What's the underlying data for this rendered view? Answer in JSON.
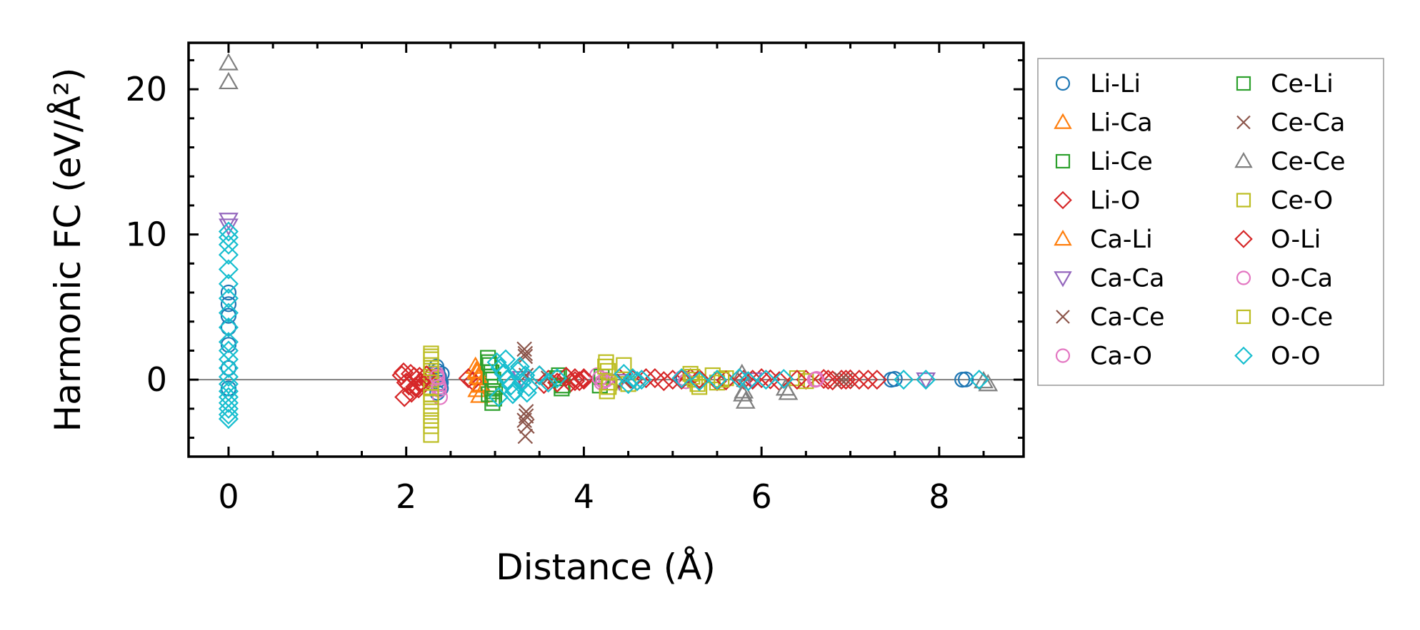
{
  "chart_data": {
    "type": "scatter",
    "xlabel": "Distance (Å)",
    "ylabel": "Harmonic FC (eV/Å²)",
    "xlim": [
      -0.45,
      8.95
    ],
    "ylim": [
      -5.3,
      23.2
    ],
    "xticks": [
      0,
      2,
      4,
      6,
      8
    ],
    "yticks": [
      0,
      10,
      20
    ],
    "x_minor_step": 0.5,
    "y_minor_step": 2,
    "zero_line": true,
    "legend_position": "outside-right",
    "legend_columns": 2,
    "series": [
      {
        "name": "Li-Li",
        "marker": "circle",
        "color": "#1f77b4",
        "x": [
          0,
          0,
          0,
          0,
          0,
          0,
          0,
          2.34,
          2.35,
          2.36,
          2.37,
          2.38,
          2.39,
          2.4,
          2.35,
          2.37,
          2.39,
          5.12,
          5.15,
          7.46,
          7.5,
          8.26,
          8.3
        ],
        "y": [
          6.0,
          5.2,
          4.4,
          3.6,
          2.4,
          0.8,
          -0.6,
          0.9,
          0.6,
          0.3,
          0.0,
          -0.3,
          -0.6,
          0.4,
          -0.9,
          0.2,
          -0.2,
          0.1,
          -0.1,
          0.0,
          0.05,
          0.0,
          0.02
        ]
      },
      {
        "name": "Li-Ca",
        "marker": "triangle-up",
        "color": "#ff7f0e",
        "x": [
          2.78,
          2.8,
          2.82,
          2.84,
          2.8,
          2.83
        ],
        "y": [
          0.9,
          0.5,
          0.1,
          -0.3,
          -0.7,
          -1.1
        ]
      },
      {
        "name": "Li-Ce",
        "marker": "square",
        "color": "#2ca02c",
        "x": [
          2.92,
          2.94,
          2.96,
          2.98,
          3.0,
          2.93,
          2.97,
          3.72,
          3.75,
          4.18
        ],
        "y": [
          1.5,
          1.0,
          0.5,
          0.0,
          -0.5,
          -1.0,
          -1.6,
          0.3,
          -0.6,
          -0.4
        ]
      },
      {
        "name": "Li-O",
        "marker": "diamond",
        "color": "#d62728",
        "x": [
          1.95,
          2.0,
          2.05,
          2.1,
          2.15,
          2.2,
          2.25,
          1.98,
          2.06,
          2.14,
          2.7,
          2.75,
          3.5,
          3.55,
          3.6,
          3.8,
          3.85,
          3.9,
          3.95,
          4.0,
          4.4,
          4.6,
          4.8,
          5.0,
          5.2,
          5.5,
          5.8,
          6.0,
          6.2,
          6.5,
          6.7,
          6.8,
          6.9,
          7.0,
          7.1,
          7.3
        ],
        "y": [
          0.3,
          -0.2,
          0.4,
          -0.5,
          0.2,
          -0.3,
          0.1,
          -1.2,
          -0.9,
          -0.6,
          0.1,
          -0.1,
          0.3,
          -0.3,
          0.0,
          0.2,
          -0.2,
          0.1,
          -0.1,
          0.0,
          0.1,
          -0.1,
          0.1,
          0.0,
          0.1,
          -0.1,
          0.0,
          0.1,
          -0.1,
          0.0,
          0.05,
          -0.05,
          0.0,
          0.02,
          0.0,
          0.0
        ]
      },
      {
        "name": "Ca-Li",
        "marker": "triangle-up",
        "color": "#ff7f0e",
        "x": [
          2.79,
          2.81,
          2.83
        ],
        "y": [
          0.6,
          0.2,
          -0.4
        ]
      },
      {
        "name": "Ca-Ca",
        "marker": "triangle-down",
        "color": "#9467bd",
        "x": [
          0,
          0,
          3.3,
          4.4,
          5.9,
          7.85
        ],
        "y": [
          11.0,
          10.6,
          0.1,
          -0.1,
          0.0,
          0.0
        ]
      },
      {
        "name": "Ca-Ce",
        "marker": "x",
        "color": "#8c564b",
        "x": [
          3.33,
          3.34,
          3.35,
          3.33,
          3.34,
          3.35,
          3.6,
          4.45,
          6.9
        ],
        "y": [
          2.1,
          1.6,
          -2.2,
          -2.8,
          -3.9,
          0.3,
          0.1,
          -0.1,
          0.0
        ]
      },
      {
        "name": "Ca-O",
        "marker": "circle",
        "color": "#e377c2",
        "x": [
          2.34,
          2.36,
          2.38,
          2.35,
          2.37,
          4.15,
          4.2,
          4.25,
          5.1,
          5.15,
          6.6,
          6.62
        ],
        "y": [
          0.4,
          -0.3,
          -1.2,
          0.1,
          -0.7,
          0.3,
          -0.2,
          0.0,
          0.1,
          -0.1,
          0.0,
          0.05
        ]
      },
      {
        "name": "Ce-Li",
        "marker": "square",
        "color": "#2ca02c",
        "x": [
          2.93,
          2.95,
          2.97,
          2.99,
          3.7,
          3.76,
          4.2
        ],
        "y": [
          1.2,
          0.2,
          -0.8,
          -1.3,
          0.1,
          -0.4,
          0.2
        ]
      },
      {
        "name": "Ce-Ca",
        "marker": "x",
        "color": "#8c564b",
        "x": [
          3.34,
          3.35,
          3.36,
          5.8,
          6.95
        ],
        "y": [
          1.8,
          -2.5,
          -3.2,
          0.0,
          0.0
        ]
      },
      {
        "name": "Ce-Ce",
        "marker": "triangle-up",
        "color": "#7f7f7f",
        "x": [
          0,
          0,
          5.78,
          5.8,
          5.82,
          5.79,
          6.27,
          6.3,
          8.5,
          8.55
        ],
        "y": [
          21.8,
          20.5,
          0.4,
          -0.8,
          -1.5,
          -1.0,
          -0.6,
          -0.9,
          -0.1,
          -0.3
        ]
      },
      {
        "name": "Ce-O",
        "marker": "square",
        "color": "#bcbd22",
        "x": [
          2.28,
          2.28,
          2.28,
          2.28,
          2.28,
          2.28,
          2.28,
          2.28,
          2.28,
          2.28,
          2.28,
          2.28,
          2.28,
          4.25,
          4.27,
          4.29,
          4.26,
          4.45,
          4.5,
          5.2,
          5.25,
          5.3,
          5.45,
          5.5,
          5.6,
          6.4,
          6.5
        ],
        "y": [
          1.8,
          1.4,
          1.0,
          0.6,
          0.2,
          -0.2,
          -0.6,
          -1.0,
          -1.5,
          -2.0,
          -2.5,
          -3.2,
          -3.8,
          1.2,
          0.6,
          -0.2,
          -0.8,
          1.0,
          -0.3,
          0.4,
          0.0,
          -0.5,
          0.3,
          -0.2,
          0.1,
          0.1,
          -0.1
        ]
      },
      {
        "name": "O-Li",
        "marker": "diamond",
        "color": "#d62728",
        "x": [
          1.97,
          2.03,
          2.09,
          2.17,
          2.23,
          3.7,
          3.8,
          3.9,
          4.0,
          4.55,
          4.7,
          4.9,
          5.1,
          5.3,
          5.6,
          5.9,
          6.1,
          6.4,
          6.75,
          6.95,
          7.2
        ],
        "y": [
          0.5,
          -0.4,
          0.2,
          -0.2,
          0.3,
          -0.2,
          0.2,
          -0.1,
          0.1,
          0.0,
          0.1,
          -0.1,
          0.0,
          0.05,
          -0.05,
          0.0,
          0.02,
          0.0,
          0.0,
          0.0,
          0.0
        ]
      },
      {
        "name": "O-Ca",
        "marker": "circle",
        "color": "#e377c2",
        "x": [
          2.35,
          2.37,
          4.18,
          4.22,
          6.61
        ],
        "y": [
          0.2,
          -0.5,
          0.1,
          -0.1,
          0.0
        ]
      },
      {
        "name": "O-Ce",
        "marker": "square",
        "color": "#bcbd22",
        "x": [
          2.28,
          2.28,
          2.28,
          2.28,
          4.24,
          4.28,
          5.22,
          5.28,
          5.55
        ],
        "y": [
          1.6,
          0.8,
          -1.2,
          -2.8,
          0.9,
          -0.5,
          0.2,
          -0.3,
          0.0
        ]
      },
      {
        "name": "O-O",
        "marker": "diamond",
        "color": "#17becf",
        "x": [
          0,
          0,
          0,
          0,
          0,
          0,
          0,
          0,
          0,
          0,
          0,
          0,
          0,
          0,
          0,
          0,
          0,
          0,
          0,
          0,
          0,
          3.02,
          3.06,
          3.1,
          3.14,
          3.18,
          3.22,
          3.26,
          3.3,
          3.34,
          3.38,
          3.04,
          3.12,
          3.2,
          3.28,
          3.36,
          3.5,
          3.6,
          3.7,
          4.45,
          4.5,
          4.55,
          4.6,
          4.65,
          5.1,
          5.3,
          5.5,
          5.75,
          5.85,
          6.05,
          6.25,
          7.6,
          7.85,
          8.45
        ],
        "y": [
          10.2,
          9.8,
          9.3,
          8.6,
          7.6,
          6.6,
          5.6,
          4.6,
          3.6,
          2.6,
          2.0,
          1.4,
          0.8,
          0.2,
          -0.3,
          -0.8,
          -1.2,
          -1.6,
          -2.0,
          -2.4,
          -2.7,
          1.2,
          0.8,
          0.4,
          0.0,
          -0.4,
          -0.8,
          0.6,
          -0.2,
          0.3,
          -0.5,
          -1.2,
          1.4,
          -1.0,
          0.9,
          -0.9,
          0.3,
          -0.2,
          0.1,
          0.4,
          -0.3,
          0.1,
          -0.1,
          0.0,
          0.1,
          -0.1,
          0.0,
          0.1,
          -0.1,
          0.0,
          0.05,
          0.0,
          0.0,
          0.0
        ]
      }
    ]
  }
}
